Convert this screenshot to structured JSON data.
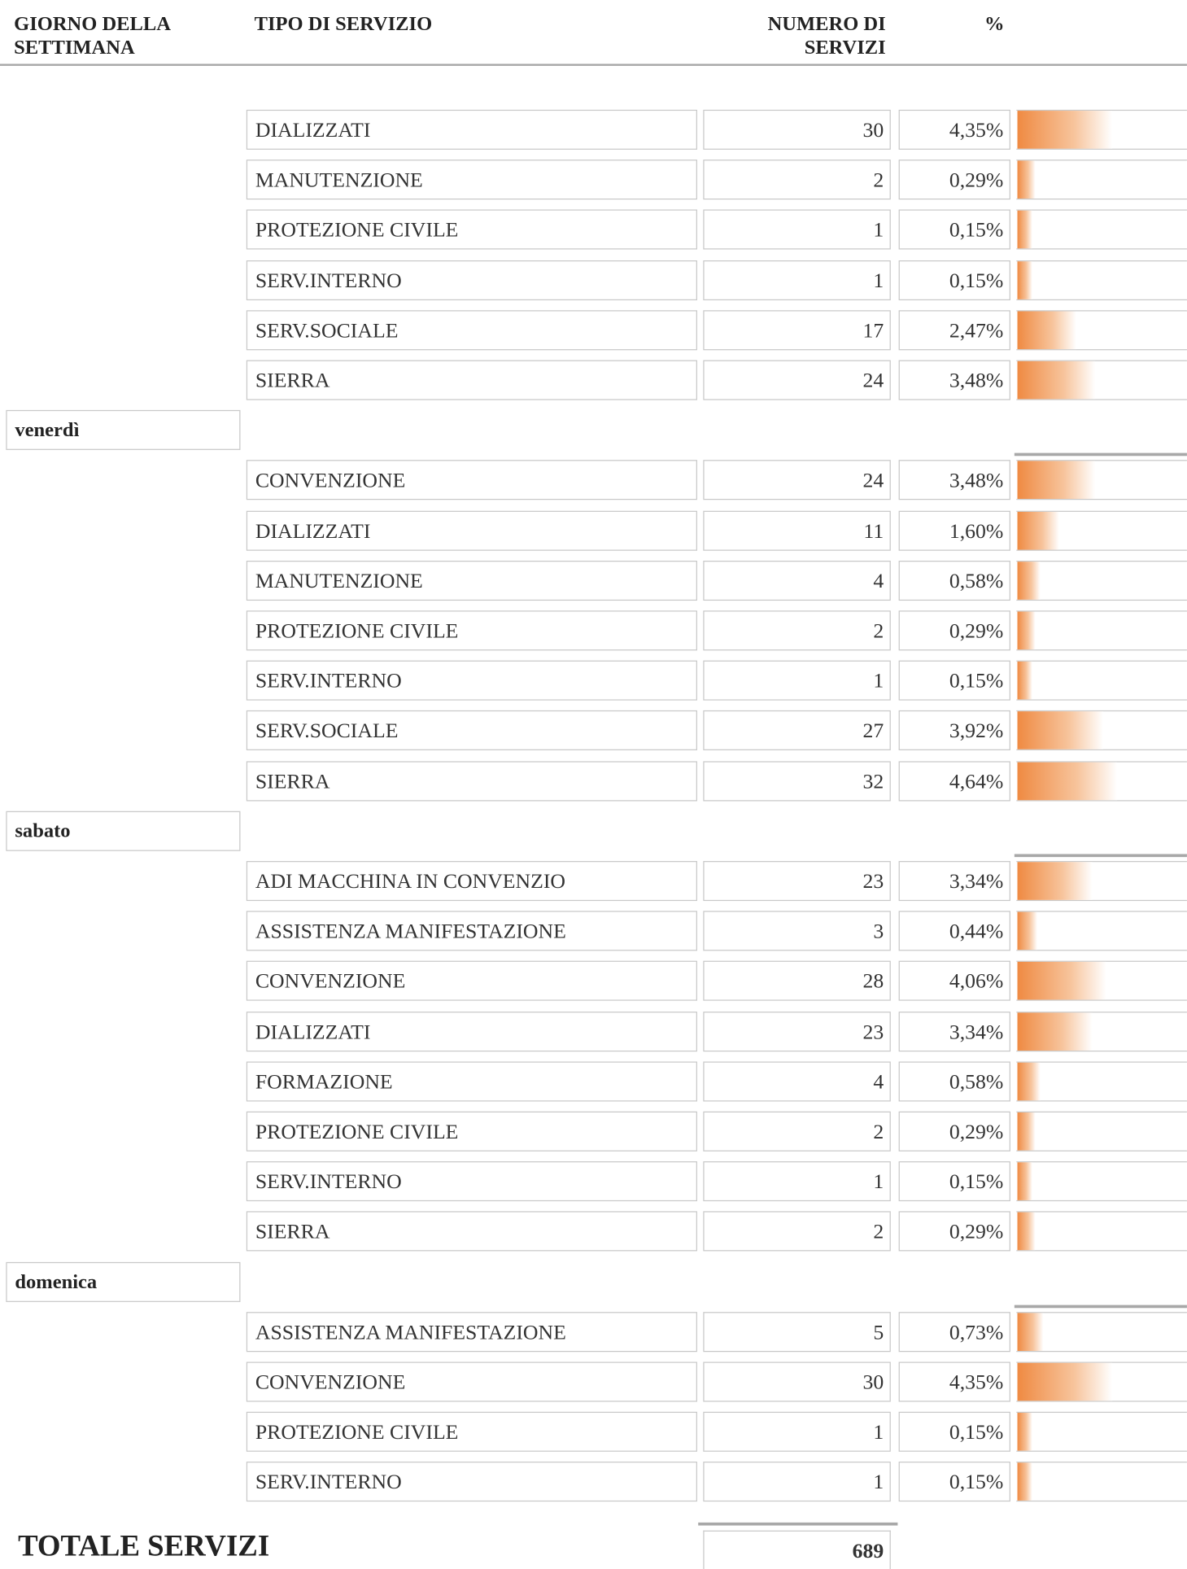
{
  "header": {
    "day": "GIORNO DELLA SETTIMANA",
    "type": "TIPO DI SERVIZIO",
    "count": "NUMERO DI SERVIZI",
    "percent": "%"
  },
  "groups": [
    {
      "rows": [
        {
          "type": "DIALIZZATI",
          "count": 30,
          "percent": 4.35,
          "percent_label": "4,35%"
        },
        {
          "type": "MANUTENZIONE",
          "count": 2,
          "percent": 0.29,
          "percent_label": "0,29%"
        },
        {
          "type": "PROTEZIONE CIVILE",
          "count": 1,
          "percent": 0.15,
          "percent_label": "0,15%"
        },
        {
          "type": "SERV.INTERNO",
          "count": 1,
          "percent": 0.15,
          "percent_label": "0,15%"
        },
        {
          "type": "SERV.SOCIALE",
          "count": 17,
          "percent": 2.47,
          "percent_label": "2,47%"
        },
        {
          "type": "SIERRA",
          "count": 24,
          "percent": 3.48,
          "percent_label": "3,48%"
        }
      ]
    },
    {
      "day": "venerdì",
      "rows": [
        {
          "type": "CONVENZIONE",
          "count": 24,
          "percent": 3.48,
          "percent_label": "3,48%"
        },
        {
          "type": "DIALIZZATI",
          "count": 11,
          "percent": 1.6,
          "percent_label": "1,60%"
        },
        {
          "type": "MANUTENZIONE",
          "count": 4,
          "percent": 0.58,
          "percent_label": "0,58%"
        },
        {
          "type": "PROTEZIONE CIVILE",
          "count": 2,
          "percent": 0.29,
          "percent_label": "0,29%"
        },
        {
          "type": "SERV.INTERNO",
          "count": 1,
          "percent": 0.15,
          "percent_label": "0,15%"
        },
        {
          "type": "SERV.SOCIALE",
          "count": 27,
          "percent": 3.92,
          "percent_label": "3,92%"
        },
        {
          "type": "SIERRA",
          "count": 32,
          "percent": 4.64,
          "percent_label": "4,64%"
        }
      ]
    },
    {
      "day": "sabato",
      "rows": [
        {
          "type": "ADI MACCHINA IN CONVENZIO",
          "count": 23,
          "percent": 3.34,
          "percent_label": "3,34%"
        },
        {
          "type": "ASSISTENZA MANIFESTAZIONE",
          "count": 3,
          "percent": 0.44,
          "percent_label": "0,44%"
        },
        {
          "type": "CONVENZIONE",
          "count": 28,
          "percent": 4.06,
          "percent_label": "4,06%"
        },
        {
          "type": "DIALIZZATI",
          "count": 23,
          "percent": 3.34,
          "percent_label": "3,34%"
        },
        {
          "type": "FORMAZIONE",
          "count": 4,
          "percent": 0.58,
          "percent_label": "0,58%"
        },
        {
          "type": "PROTEZIONE CIVILE",
          "count": 2,
          "percent": 0.29,
          "percent_label": "0,29%"
        },
        {
          "type": "SERV.INTERNO",
          "count": 1,
          "percent": 0.15,
          "percent_label": "0,15%"
        },
        {
          "type": "SIERRA",
          "count": 2,
          "percent": 0.29,
          "percent_label": "0,29%"
        }
      ]
    },
    {
      "day": "domenica",
      "rows": [
        {
          "type": "ASSISTENZA MANIFESTAZIONE",
          "count": 5,
          "percent": 0.73,
          "percent_label": "0,73%"
        },
        {
          "type": "CONVENZIONE",
          "count": 30,
          "percent": 4.35,
          "percent_label": "4,35%"
        },
        {
          "type": "PROTEZIONE CIVILE",
          "count": 1,
          "percent": 0.15,
          "percent_label": "0,15%"
        },
        {
          "type": "SERV.INTERNO",
          "count": 1,
          "percent": 0.15,
          "percent_label": "0,15%"
        }
      ]
    }
  ],
  "total": {
    "label": "TOTALE SERVIZI",
    "value": 689
  }
}
